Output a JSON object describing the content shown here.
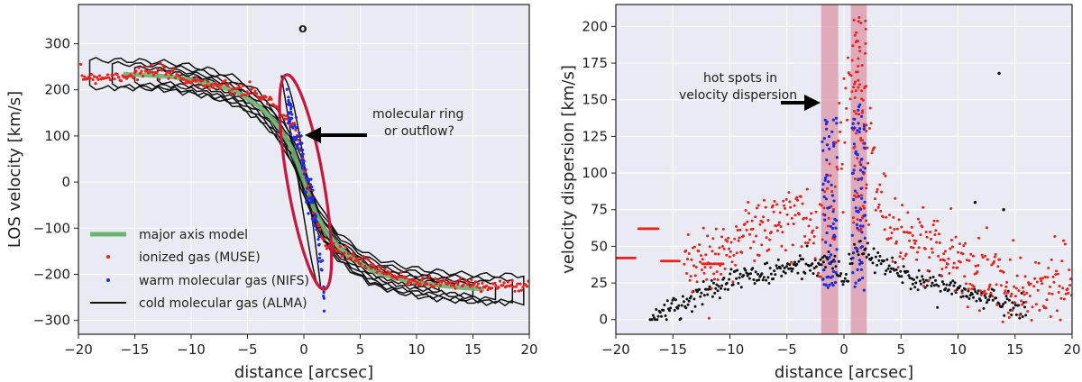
{
  "chart_data": [
    {
      "type": "scatter",
      "xlabel": "distance [arcsec]",
      "ylabel": "LOS velocity [km/s]",
      "xlim": [
        -20,
        20
      ],
      "ylim": [
        -330,
        385
      ],
      "xticks": [
        -20,
        -15,
        -10,
        -5,
        0,
        5,
        10,
        15,
        20
      ],
      "yticks": [
        -300,
        -200,
        -100,
        0,
        100,
        200,
        300
      ],
      "xtick_labels": [
        "−20",
        "−15",
        "−10",
        "−5",
        "0",
        "5",
        "10",
        "15",
        "20"
      ],
      "ytick_labels": [
        "−300",
        "−200",
        "−100",
        "0",
        "100",
        "200",
        "300"
      ],
      "grid": true,
      "legend_position": "lower-left",
      "series": [
        {
          "name": "major axis model",
          "color": "#6db36d",
          "style": "thick-line",
          "x": [
            -16,
            -14,
            -12,
            -10,
            -8,
            -6,
            -4,
            -3,
            -2,
            -1,
            0,
            1,
            2,
            3,
            4,
            6,
            8,
            10,
            12,
            14,
            16
          ],
          "y": [
            234,
            232,
            229,
            222,
            212,
            196,
            165,
            142,
            112,
            70,
            3,
            -65,
            -108,
            -138,
            -160,
            -192,
            -208,
            -218,
            -224,
            -229,
            -232
          ]
        },
        {
          "name": "ionized gas (MUSE)",
          "color": "#e8231f",
          "style": "dots",
          "x": [
            -20,
            -18,
            -16,
            -14,
            -12,
            -10,
            -8,
            -6,
            -4,
            -3,
            -2,
            -1.5,
            -1,
            -0.5,
            0,
            0.5,
            1,
            1.5,
            2,
            3,
            4,
            6,
            8,
            10,
            12,
            14,
            16,
            18,
            20
          ],
          "y": [
            228,
            228,
            230,
            238,
            236,
            220,
            210,
            200,
            190,
            175,
            150,
            138,
            120,
            90,
            30,
            -20,
            -70,
            -110,
            -140,
            -150,
            -158,
            -185,
            -205,
            -215,
            -218,
            -220,
            -222,
            -226,
            -225
          ]
        },
        {
          "name": "warm molecular gas (NIFS)",
          "color": "#1f2be0",
          "style": "dots",
          "x": [
            -1.5,
            -1.2,
            -1,
            -0.8,
            -0.6,
            -0.4,
            -0.2,
            0,
            0.2,
            0.4,
            0.6,
            0.8,
            1.0,
            1.2,
            1.5,
            1.8
          ],
          "y": [
            170,
            150,
            130,
            110,
            95,
            80,
            55,
            30,
            10,
            -5,
            -20,
            -50,
            -80,
            -110,
            -180,
            -245
          ]
        },
        {
          "name": "cold molecular gas (ALMA)",
          "color": "#111111",
          "style": "contours"
        }
      ],
      "annotations": {
        "ring_label_1": "molecular ring",
        "ring_label_2": "or outflow?",
        "corner_mark": "o"
      }
    },
    {
      "type": "scatter",
      "xlabel": "distance [arcsec]",
      "ylabel": "velocity dispersion [km/s]",
      "xlim": [
        -20,
        20
      ],
      "ylim": [
        -10,
        215
      ],
      "xticks": [
        -20,
        -15,
        -10,
        -5,
        0,
        5,
        10,
        15,
        20
      ],
      "yticks": [
        0,
        25,
        50,
        75,
        100,
        125,
        150,
        175,
        200
      ],
      "xtick_labels": [
        "−20",
        "−15",
        "−10",
        "−5",
        "0",
        "5",
        "10",
        "15",
        "20"
      ],
      "ytick_labels": [
        "0",
        "25",
        "50",
        "75",
        "100",
        "125",
        "150",
        "175",
        "200"
      ],
      "grid": true,
      "highlight_bands": [
        [
          -2,
          -0.5
        ],
        [
          0.6,
          2.0
        ]
      ],
      "series": [
        {
          "name": "ionized gas (MUSE)",
          "color": "#e8231f",
          "style": "dots",
          "x": [
            -20,
            -18,
            -16,
            -14,
            -12,
            -10,
            -8,
            -6,
            -4,
            -3,
            -2,
            -1,
            0,
            1,
            2,
            3,
            4,
            6,
            8,
            10,
            12,
            14,
            16,
            18,
            20
          ],
          "y": [
            42,
            42,
            40,
            40,
            38,
            50,
            60,
            65,
            70,
            60,
            55,
            90,
            130,
            185,
            150,
            80,
            65,
            55,
            50,
            40,
            30,
            25,
            20,
            25,
            25
          ]
        },
        {
          "name": "warm molecular gas (NIFS)",
          "color": "#1f2be0",
          "style": "dots",
          "x": [
            -1.8,
            -1.5,
            -1.2,
            -1,
            -0.8,
            0.8,
            1,
            1.2,
            1.5,
            1.8
          ],
          "y": [
            60,
            90,
            110,
            125,
            75,
            90,
            130,
            145,
            100,
            60
          ]
        },
        {
          "name": "cold molecular gas (ALMA)",
          "color": "#111111",
          "style": "dots",
          "x": [
            -17,
            -15,
            -13,
            -11,
            -9,
            -7,
            -5,
            -3,
            -1,
            0,
            1,
            2,
            4,
            6,
            8,
            10,
            12,
            14,
            16
          ],
          "y": [
            0,
            8,
            15,
            25,
            30,
            30,
            35,
            38,
            40,
            25,
            48,
            45,
            35,
            28,
            25,
            20,
            15,
            12,
            8
          ]
        }
      ],
      "outliers": [
        {
          "x": 13.6,
          "y": 168,
          "color": "#111111"
        },
        {
          "x": 14.0,
          "y": 75,
          "color": "#111111"
        },
        {
          "x": 11.5,
          "y": 80,
          "color": "#111111"
        }
      ],
      "annotations": {
        "hot_label_1": "hot spots in",
        "hot_label_2": "velocity dispersion"
      }
    }
  ]
}
